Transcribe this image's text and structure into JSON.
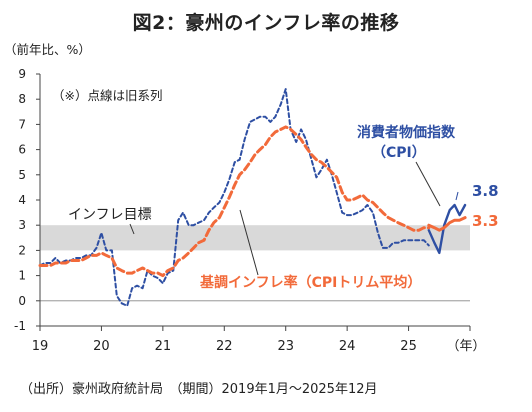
{
  "title": "図2：豪州のインフレ率の推移",
  "source": "（出所）豪州政府統計局　（期間）2019年1月〜2025年12月",
  "chart_data": {
    "type": "line",
    "y_unit_label": "（前年比、%）",
    "x_unit_label": "（年）",
    "note": "（※）点線は旧系列",
    "x_ticks": [
      "19",
      "20",
      "21",
      "22",
      "23",
      "24",
      "25"
    ],
    "y_ticks": [
      "9",
      "8",
      "7",
      "6",
      "5",
      "4",
      "3",
      "2",
      "1",
      "0",
      "-1"
    ],
    "ylim": [
      -1,
      9
    ],
    "xlim": [
      2019.0,
      2026.0
    ],
    "target_band": {
      "label": "インフレ目標",
      "range": [
        2,
        3
      ],
      "color": "#d9d9d9"
    },
    "series": [
      {
        "name": "消費者物価指数（CPI）",
        "color": "#2e4fa3",
        "style": "dashed",
        "end_label": "3.8",
        "points": [
          [
            2019.0,
            1.4
          ],
          [
            2019.08,
            1.5
          ],
          [
            2019.17,
            1.5
          ],
          [
            2019.25,
            1.7
          ],
          [
            2019.33,
            1.5
          ],
          [
            2019.42,
            1.6
          ],
          [
            2019.5,
            1.6
          ],
          [
            2019.58,
            1.7
          ],
          [
            2019.67,
            1.7
          ],
          [
            2019.75,
            1.8
          ],
          [
            2019.83,
            1.8
          ],
          [
            2019.92,
            2.1
          ],
          [
            2020.0,
            2.7
          ],
          [
            2020.08,
            2.0
          ],
          [
            2020.17,
            2.0
          ],
          [
            2020.25,
            0.2
          ],
          [
            2020.33,
            -0.1
          ],
          [
            2020.42,
            -0.2
          ],
          [
            2020.5,
            0.5
          ],
          [
            2020.58,
            0.6
          ],
          [
            2020.67,
            0.5
          ],
          [
            2020.75,
            1.2
          ],
          [
            2020.83,
            1.0
          ],
          [
            2020.92,
            0.9
          ],
          [
            2021.0,
            0.7
          ],
          [
            2021.08,
            1.1
          ],
          [
            2021.17,
            1.2
          ],
          [
            2021.25,
            3.2
          ],
          [
            2021.33,
            3.5
          ],
          [
            2021.42,
            3.0
          ],
          [
            2021.5,
            3.0
          ],
          [
            2021.58,
            3.1
          ],
          [
            2021.67,
            3.2
          ],
          [
            2021.75,
            3.5
          ],
          [
            2021.83,
            3.7
          ],
          [
            2021.92,
            3.9
          ],
          [
            2022.0,
            4.3
          ],
          [
            2022.08,
            4.8
          ],
          [
            2022.17,
            5.5
          ],
          [
            2022.25,
            5.6
          ],
          [
            2022.33,
            6.4
          ],
          [
            2022.42,
            7.1
          ],
          [
            2022.5,
            7.2
          ],
          [
            2022.58,
            7.3
          ],
          [
            2022.67,
            7.3
          ],
          [
            2022.75,
            7.1
          ],
          [
            2022.83,
            7.3
          ],
          [
            2022.92,
            7.8
          ],
          [
            2023.0,
            8.4
          ],
          [
            2023.08,
            6.8
          ],
          [
            2023.17,
            6.3
          ],
          [
            2023.25,
            6.8
          ],
          [
            2023.33,
            6.4
          ],
          [
            2023.42,
            5.6
          ],
          [
            2023.5,
            4.9
          ],
          [
            2023.58,
            5.2
          ],
          [
            2023.67,
            5.6
          ],
          [
            2023.75,
            5.0
          ],
          [
            2023.83,
            4.3
          ],
          [
            2023.92,
            3.5
          ],
          [
            2024.0,
            3.4
          ],
          [
            2024.08,
            3.4
          ],
          [
            2024.17,
            3.5
          ],
          [
            2024.25,
            3.6
          ],
          [
            2024.33,
            3.8
          ],
          [
            2024.42,
            3.5
          ],
          [
            2024.5,
            2.7
          ],
          [
            2024.58,
            2.1
          ],
          [
            2024.67,
            2.1
          ],
          [
            2024.75,
            2.3
          ],
          [
            2024.83,
            2.3
          ],
          [
            2024.92,
            2.4
          ],
          [
            2025.0,
            2.4
          ],
          [
            2025.08,
            2.4
          ],
          [
            2025.17,
            2.4
          ],
          [
            2025.25,
            2.4
          ],
          [
            2025.33,
            2.2
          ]
        ]
      },
      {
        "name": "消費者物価指数（CPI）",
        "color": "#2e4fa3",
        "style": "solid",
        "points": [
          [
            2025.33,
            2.8
          ],
          [
            2025.42,
            2.3
          ],
          [
            2025.5,
            1.9
          ],
          [
            2025.58,
            3.0
          ],
          [
            2025.67,
            3.6
          ],
          [
            2025.75,
            3.8
          ],
          [
            2025.83,
            3.4
          ],
          [
            2025.92,
            3.8
          ]
        ]
      },
      {
        "name": "基調インフレ率（CPIトリム平均）",
        "color": "#f26a3a",
        "style": "dashed",
        "end_label": "3.3",
        "points": [
          [
            2019.0,
            1.4
          ],
          [
            2019.08,
            1.4
          ],
          [
            2019.17,
            1.4
          ],
          [
            2019.25,
            1.5
          ],
          [
            2019.33,
            1.5
          ],
          [
            2019.42,
            1.5
          ],
          [
            2019.5,
            1.6
          ],
          [
            2019.58,
            1.6
          ],
          [
            2019.67,
            1.6
          ],
          [
            2019.75,
            1.7
          ],
          [
            2019.83,
            1.8
          ],
          [
            2019.92,
            1.8
          ],
          [
            2020.0,
            1.9
          ],
          [
            2020.08,
            1.8
          ],
          [
            2020.17,
            1.7
          ],
          [
            2020.25,
            1.3
          ],
          [
            2020.33,
            1.2
          ],
          [
            2020.42,
            1.1
          ],
          [
            2020.5,
            1.1
          ],
          [
            2020.58,
            1.2
          ],
          [
            2020.67,
            1.3
          ],
          [
            2020.75,
            1.2
          ],
          [
            2020.83,
            1.1
          ],
          [
            2020.92,
            1.1
          ],
          [
            2021.0,
            1.0
          ],
          [
            2021.08,
            1.2
          ],
          [
            2021.17,
            1.3
          ],
          [
            2021.25,
            1.6
          ],
          [
            2021.33,
            1.7
          ],
          [
            2021.42,
            1.9
          ],
          [
            2021.5,
            2.1
          ],
          [
            2021.58,
            2.3
          ],
          [
            2021.67,
            2.4
          ],
          [
            2021.75,
            2.8
          ],
          [
            2021.83,
            3.1
          ],
          [
            2021.92,
            3.3
          ],
          [
            2022.0,
            3.7
          ],
          [
            2022.08,
            4.1
          ],
          [
            2022.17,
            4.6
          ],
          [
            2022.25,
            5.0
          ],
          [
            2022.33,
            5.2
          ],
          [
            2022.42,
            5.5
          ],
          [
            2022.5,
            5.8
          ],
          [
            2022.58,
            6.0
          ],
          [
            2022.67,
            6.2
          ],
          [
            2022.75,
            6.5
          ],
          [
            2022.83,
            6.7
          ],
          [
            2022.92,
            6.8
          ],
          [
            2023.0,
            6.9
          ],
          [
            2023.08,
            6.8
          ],
          [
            2023.17,
            6.6
          ],
          [
            2023.25,
            6.4
          ],
          [
            2023.33,
            6.1
          ],
          [
            2023.42,
            5.8
          ],
          [
            2023.5,
            5.6
          ],
          [
            2023.58,
            5.5
          ],
          [
            2023.67,
            5.3
          ],
          [
            2023.75,
            5.1
          ],
          [
            2023.83,
            4.9
          ],
          [
            2023.92,
            4.3
          ],
          [
            2024.0,
            4.0
          ],
          [
            2024.08,
            4.0
          ],
          [
            2024.17,
            4.1
          ],
          [
            2024.25,
            4.2
          ],
          [
            2024.33,
            4.0
          ],
          [
            2024.42,
            3.9
          ],
          [
            2024.5,
            3.7
          ],
          [
            2024.58,
            3.5
          ],
          [
            2024.67,
            3.3
          ],
          [
            2024.75,
            3.2
          ],
          [
            2024.83,
            3.1
          ],
          [
            2024.92,
            3.0
          ],
          [
            2025.0,
            2.9
          ],
          [
            2025.08,
            2.8
          ],
          [
            2025.17,
            2.8
          ],
          [
            2025.25,
            2.9
          ],
          [
            2025.33,
            2.9
          ]
        ]
      },
      {
        "name": "基調インフレ率（CPIトリム平均）",
        "color": "#f26a3a",
        "style": "solid",
        "points": [
          [
            2025.33,
            3.0
          ],
          [
            2025.42,
            2.9
          ],
          [
            2025.5,
            2.8
          ],
          [
            2025.58,
            2.9
          ],
          [
            2025.67,
            3.1
          ],
          [
            2025.75,
            3.2
          ],
          [
            2025.83,
            3.2
          ],
          [
            2025.92,
            3.3
          ]
        ]
      }
    ],
    "annotations": {
      "target_label": "インフレ目標",
      "cpi_label_line1": "消費者物価指数",
      "cpi_label_line2": "（CPI）",
      "trim_label": "基調インフレ率（CPIトリム平均）"
    }
  }
}
